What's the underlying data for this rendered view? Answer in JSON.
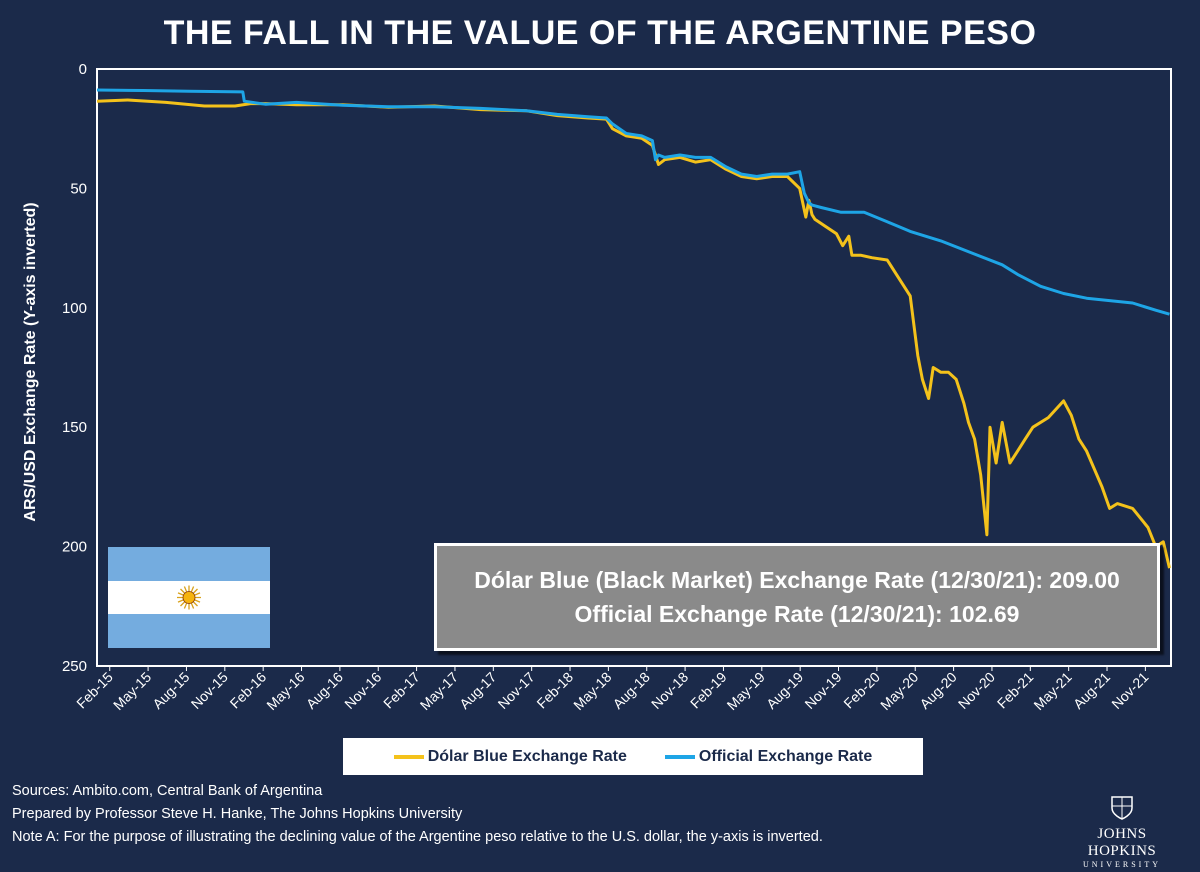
{
  "title": "THE FALL IN THE VALUE OF THE ARGENTINE PESO",
  "chart_data": {
    "type": "line",
    "title": "THE FALL IN THE VALUE OF THE ARGENTINE PESO",
    "xlabel": "",
    "ylabel": "ARS/USD Exchange Rate (Y-axis inverted)",
    "ylim": [
      0,
      250
    ],
    "y_inverted": true,
    "y_ticks": [
      0,
      50,
      100,
      150,
      200,
      250
    ],
    "x_domain": [
      2015.0,
      2022.0
    ],
    "x_ticks": [
      {
        "label": "Feb-15",
        "t": 2015.083
      },
      {
        "label": "May-15",
        "t": 2015.333
      },
      {
        "label": "Aug-15",
        "t": 2015.583
      },
      {
        "label": "Nov-15",
        "t": 2015.833
      },
      {
        "label": "Feb-16",
        "t": 2016.083
      },
      {
        "label": "May-16",
        "t": 2016.333
      },
      {
        "label": "Aug-16",
        "t": 2016.583
      },
      {
        "label": "Nov-16",
        "t": 2016.833
      },
      {
        "label": "Feb-17",
        "t": 2017.083
      },
      {
        "label": "May-17",
        "t": 2017.333
      },
      {
        "label": "Aug-17",
        "t": 2017.583
      },
      {
        "label": "Nov-17",
        "t": 2017.833
      },
      {
        "label": "Feb-18",
        "t": 2018.083
      },
      {
        "label": "May-18",
        "t": 2018.333
      },
      {
        "label": "Aug-18",
        "t": 2018.583
      },
      {
        "label": "Nov-18",
        "t": 2018.833
      },
      {
        "label": "Feb-19",
        "t": 2019.083
      },
      {
        "label": "May-19",
        "t": 2019.333
      },
      {
        "label": "Aug-19",
        "t": 2019.583
      },
      {
        "label": "Nov-19",
        "t": 2019.833
      },
      {
        "label": "Feb-20",
        "t": 2020.083
      },
      {
        "label": "May-20",
        "t": 2020.333
      },
      {
        "label": "Aug-20",
        "t": 2020.583
      },
      {
        "label": "Nov-20",
        "t": 2020.833
      },
      {
        "label": "Feb-21",
        "t": 2021.083
      },
      {
        "label": "May-21",
        "t": 2021.333
      },
      {
        "label": "Aug-21",
        "t": 2021.583
      },
      {
        "label": "Nov-21",
        "t": 2021.833
      }
    ],
    "series": [
      {
        "name": "Dólar Blue Exchange Rate",
        "color": "#f4c21b",
        "x": [
          2015.0,
          2015.2,
          2015.45,
          2015.7,
          2015.9,
          2016.0,
          2016.1,
          2016.3,
          2016.6,
          2016.9,
          2017.2,
          2017.5,
          2017.8,
          2018.0,
          2018.2,
          2018.32,
          2018.36,
          2018.45,
          2018.55,
          2018.62,
          2018.66,
          2018.7,
          2018.8,
          2018.9,
          2019.0,
          2019.1,
          2019.2,
          2019.3,
          2019.4,
          2019.5,
          2019.58,
          2019.62,
          2019.64,
          2019.66,
          2019.68,
          2019.75,
          2019.82,
          2019.86,
          2019.9,
          2019.92,
          2019.98,
          2020.05,
          2020.15,
          2020.25,
          2020.3,
          2020.35,
          2020.38,
          2020.42,
          2020.45,
          2020.5,
          2020.55,
          2020.6,
          2020.65,
          2020.68,
          2020.72,
          2020.76,
          2020.8,
          2020.82,
          2020.86,
          2020.9,
          2020.95,
          2021.0,
          2021.05,
          2021.1,
          2021.2,
          2021.3,
          2021.35,
          2021.4,
          2021.45,
          2021.55,
          2021.6,
          2021.65,
          2021.75,
          2021.85,
          2021.9,
          2021.95,
          2021.99
        ],
        "values": [
          13.5,
          13.0,
          14.0,
          15.5,
          15.5,
          14.5,
          14.5,
          15.0,
          15.0,
          16.0,
          15.5,
          17.0,
          17.5,
          19.5,
          20.5,
          21.0,
          25.0,
          28.0,
          29.0,
          32.0,
          40.0,
          38.0,
          37.0,
          39.0,
          38.0,
          42.0,
          45.0,
          46.0,
          45.0,
          45.0,
          50.0,
          62.0,
          55.0,
          61.0,
          63.0,
          66.0,
          69.0,
          74.0,
          70.0,
          78.0,
          78.0,
          79.0,
          80.0,
          90.0,
          95.0,
          120.0,
          130.0,
          138.0,
          125.0,
          127.0,
          127.0,
          130.0,
          140.0,
          148.0,
          155.0,
          170.0,
          195.0,
          150.0,
          165.0,
          148.0,
          165.0,
          160.0,
          155.0,
          150.0,
          146.0,
          139.0,
          145.0,
          155.0,
          160.0,
          175.0,
          184.0,
          182.0,
          184.0,
          192.0,
          200.0,
          198.0,
          209.0
        ]
      },
      {
        "name": "Official Exchange Rate",
        "color": "#1ea5e6",
        "x": [
          2015.0,
          2015.3,
          2015.6,
          2015.95,
          2015.96,
          2016.1,
          2016.3,
          2016.6,
          2016.9,
          2017.2,
          2017.5,
          2017.8,
          2018.0,
          2018.2,
          2018.32,
          2018.36,
          2018.45,
          2018.55,
          2018.62,
          2018.64,
          2018.66,
          2018.7,
          2018.8,
          2018.9,
          2019.0,
          2019.1,
          2019.2,
          2019.3,
          2019.4,
          2019.5,
          2019.58,
          2019.61,
          2019.64,
          2019.66,
          2019.72,
          2019.85,
          2020.0,
          2020.15,
          2020.3,
          2020.5,
          2020.7,
          2020.9,
          2021.0,
          2021.15,
          2021.3,
          2021.45,
          2021.6,
          2021.75,
          2021.9,
          2021.99
        ],
        "values": [
          8.8,
          9.0,
          9.3,
          9.6,
          13.5,
          14.8,
          14.0,
          15.2,
          15.8,
          15.8,
          16.5,
          17.5,
          19.0,
          20.0,
          20.5,
          23.0,
          27.0,
          28.0,
          30.0,
          38.0,
          36.0,
          37.0,
          36.0,
          37.0,
          37.0,
          41.0,
          44.0,
          45.0,
          44.0,
          44.0,
          43.0,
          52.0,
          56.0,
          57.0,
          58.0,
          60.0,
          60.0,
          64.0,
          68.0,
          72.0,
          77.0,
          82.0,
          86.0,
          91.0,
          94.0,
          96.0,
          97.0,
          98.0,
          101.0,
          102.69
        ]
      }
    ],
    "legend_position": "bottom-center"
  },
  "info_box": {
    "line1": "Dólar Blue (Black Market) Exchange Rate (12/30/21): 209.00",
    "line2": "Official Exchange Rate (12/30/21): 102.69"
  },
  "legend": {
    "blue_label": "Dólar Blue Exchange Rate",
    "official_label": "Official Exchange Rate",
    "blue_color": "#f4c21b",
    "official_color": "#1ea5e6"
  },
  "footer": {
    "sources": "Sources: Ambito.com, Central Bank of Argentina",
    "prepared": "Prepared by Professor Steve H. Hanke, The Johns Hopkins University",
    "note": "Note A: For the purpose of illustrating the declining value of the Argentine peso relative to the U.S. dollar, the y-axis is inverted."
  },
  "logo": {
    "name": "JOHNS HOPKINS",
    "sub": "UNIVERSITY"
  }
}
